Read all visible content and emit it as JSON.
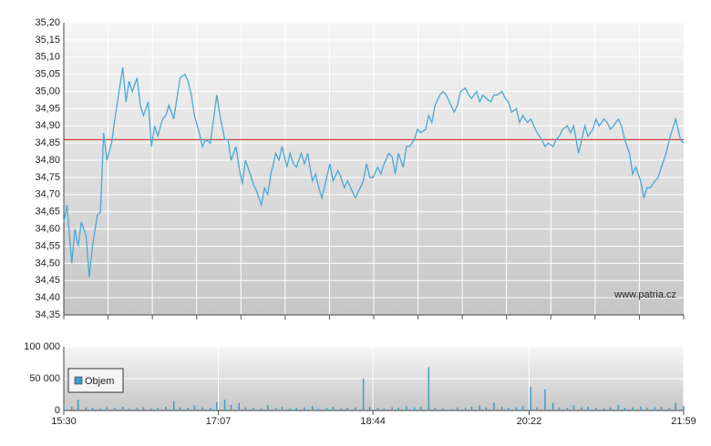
{
  "chart_data": [
    {
      "type": "line",
      "xlim": [
        "15:30",
        "21:59"
      ],
      "ylim": [
        34.35,
        35.2
      ],
      "yticks": [
        {
          "value": 34.35,
          "label": "34,35"
        },
        {
          "value": 34.4,
          "label": "34,40"
        },
        {
          "value": 34.45,
          "label": "34,45"
        },
        {
          "value": 34.5,
          "label": "34,50"
        },
        {
          "value": 34.55,
          "label": "34,55"
        },
        {
          "value": 34.6,
          "label": "34,60"
        },
        {
          "value": 34.65,
          "label": "34,65"
        },
        {
          "value": 34.7,
          "label": "34,70"
        },
        {
          "value": 34.75,
          "label": "34,75"
        },
        {
          "value": 34.8,
          "label": "34,80"
        },
        {
          "value": 34.85,
          "label": "34,85"
        },
        {
          "value": 34.9,
          "label": "34,90"
        },
        {
          "value": 34.95,
          "label": "34,95"
        },
        {
          "value": 35.0,
          "label": "35,00"
        },
        {
          "value": 35.05,
          "label": "35,05"
        },
        {
          "value": 35.1,
          "label": "35,10"
        },
        {
          "value": 35.15,
          "label": "35,15"
        },
        {
          "value": 35.2,
          "label": "35,20"
        }
      ],
      "grid": true,
      "reference_line": {
        "value": 34.86,
        "color": "#cc2222"
      },
      "annotation": "www.patria.cz",
      "x": [
        "15:30",
        "15:32",
        "15:35",
        "15:37",
        "15:39",
        "15:41",
        "15:44",
        "15:46",
        "15:48",
        "15:51",
        "15:53",
        "15:55",
        "15:57",
        "16:00",
        "16:02",
        "16:04",
        "16:07",
        "16:09",
        "16:11",
        "16:13",
        "16:16",
        "16:18",
        "16:20",
        "16:23",
        "16:25",
        "16:27",
        "16:29",
        "16:32",
        "16:34",
        "16:36",
        "16:39",
        "16:41",
        "16:43",
        "16:46",
        "16:48",
        "16:50",
        "16:52",
        "16:55",
        "16:57",
        "16:59",
        "17:02",
        "17:04",
        "17:06",
        "17:08",
        "17:11",
        "17:13",
        "17:15",
        "17:18",
        "17:20",
        "17:22",
        "17:24",
        "17:27",
        "17:29",
        "17:31",
        "17:34",
        "17:36",
        "17:38",
        "17:40",
        "17:43",
        "17:45",
        "17:47",
        "17:50",
        "17:52",
        "17:54",
        "17:56",
        "17:59",
        "18:01",
        "18:03",
        "18:06",
        "18:08",
        "18:10",
        "18:12",
        "18:15",
        "18:17",
        "18:19",
        "18:22",
        "18:24",
        "18:26",
        "18:28",
        "18:31",
        "18:33",
        "18:35",
        "18:38",
        "18:40",
        "18:42",
        "18:44",
        "18:47",
        "18:49",
        "18:51",
        "18:54",
        "18:56",
        "18:58",
        "19:00",
        "19:03",
        "19:05",
        "19:07",
        "19:10",
        "19:12",
        "19:14",
        "19:17",
        "19:19",
        "19:21",
        "19:23",
        "19:26",
        "19:28",
        "19:30",
        "19:33",
        "19:35",
        "19:37",
        "19:39",
        "19:42",
        "19:44",
        "19:46",
        "19:49",
        "19:51",
        "19:53",
        "19:55",
        "19:58",
        "20:00",
        "20:02",
        "20:05",
        "20:07",
        "20:09",
        "20:11",
        "20:14",
        "20:16",
        "20:18",
        "20:21",
        "20:23",
        "20:25",
        "20:27",
        "20:30",
        "20:32",
        "20:34",
        "20:37",
        "20:39",
        "20:41",
        "20:43",
        "20:46",
        "20:48",
        "20:50",
        "20:53",
        "20:55",
        "20:57",
        "20:59",
        "21:02",
        "21:04",
        "21:06",
        "21:09",
        "21:11",
        "21:13",
        "21:15",
        "21:18",
        "21:20",
        "21:22",
        "21:25",
        "21:27",
        "21:29",
        "21:32",
        "21:34",
        "21:36",
        "21:38",
        "21:41",
        "21:43",
        "21:45",
        "21:48",
        "21:50",
        "21:52",
        "21:54",
        "21:57",
        "21:59"
      ],
      "series": [
        {
          "color": "#4aa8d4",
          "values": [
            34.62,
            34.67,
            34.5,
            34.6,
            34.55,
            34.62,
            34.58,
            34.46,
            34.55,
            34.64,
            34.65,
            34.88,
            34.8,
            34.85,
            34.92,
            34.98,
            35.07,
            34.97,
            35.03,
            35.0,
            35.04,
            34.96,
            34.93,
            34.97,
            34.84,
            34.9,
            34.87,
            34.92,
            34.93,
            34.96,
            34.92,
            34.98,
            35.04,
            35.05,
            35.03,
            34.99,
            34.93,
            34.88,
            34.84,
            34.86,
            34.85,
            34.92,
            34.99,
            34.93,
            34.86,
            34.86,
            34.8,
            34.84,
            34.78,
            34.73,
            34.8,
            34.76,
            34.73,
            34.71,
            34.67,
            34.72,
            34.7,
            34.76,
            34.82,
            34.8,
            34.84,
            34.78,
            34.82,
            34.79,
            34.78,
            34.82,
            34.79,
            34.82,
            34.74,
            34.76,
            34.72,
            34.69,
            34.75,
            34.79,
            34.74,
            34.77,
            34.75,
            34.72,
            34.74,
            34.71,
            34.69,
            34.71,
            34.74,
            34.79,
            34.75,
            34.75,
            34.78,
            34.76,
            34.79,
            34.82,
            34.81,
            34.76,
            34.82,
            34.78,
            34.84,
            34.84,
            34.86,
            34.89,
            34.88,
            34.89,
            34.93,
            34.91,
            34.96,
            34.99,
            35.0,
            34.99,
            34.96,
            34.94,
            34.96,
            35.0,
            35.01,
            34.99,
            34.98,
            35.0,
            34.97,
            34.99,
            34.98,
            34.97,
            34.99,
            34.99,
            35.0,
            34.98,
            34.97,
            34.94,
            34.95,
            34.91,
            34.93,
            34.91,
            34.92,
            34.9,
            34.88,
            34.86,
            34.84,
            34.85,
            34.84,
            34.86,
            34.87,
            34.89,
            34.9,
            34.88,
            34.9,
            34.82,
            34.86,
            34.9,
            34.87,
            34.89,
            34.92,
            34.9,
            34.92,
            34.91,
            34.89,
            34.9,
            34.92,
            34.9,
            34.86,
            34.82,
            34.76,
            34.78,
            34.74,
            34.69,
            34.72,
            34.72,
            34.74,
            34.75,
            34.78,
            34.82,
            34.86,
            34.89,
            34.92,
            34.86,
            34.85
          ]
        }
      ]
    },
    {
      "type": "bar",
      "xlim": [
        "15:30",
        "21:59"
      ],
      "xticks": [
        "15:30",
        "17:07",
        "18:44",
        "20:22",
        "21:59"
      ],
      "ylim": [
        0,
        100000
      ],
      "yticks": [
        0,
        {
          "value": 50000,
          "label": "50 000"
        },
        {
          "value": 100000,
          "label": "100 000"
        }
      ],
      "grid": true,
      "legend": "upper left",
      "x": [
        "15:30",
        "15:35",
        "15:39",
        "15:44",
        "15:48",
        "15:53",
        "15:57",
        "16:02",
        "16:07",
        "16:11",
        "16:16",
        "16:20",
        "16:25",
        "16:29",
        "16:34",
        "16:39",
        "16:43",
        "16:48",
        "16:52",
        "16:57",
        "17:02",
        "17:06",
        "17:11",
        "17:15",
        "17:20",
        "17:24",
        "17:29",
        "17:34",
        "17:38",
        "17:43",
        "17:47",
        "17:52",
        "17:56",
        "18:01",
        "18:06",
        "18:10",
        "18:15",
        "18:19",
        "18:24",
        "18:28",
        "18:33",
        "18:38",
        "18:42",
        "18:47",
        "18:51",
        "18:56",
        "19:00",
        "19:05",
        "19:10",
        "19:14",
        "19:19",
        "19:23",
        "19:28",
        "19:33",
        "19:37",
        "19:42",
        "19:46",
        "19:51",
        "19:55",
        "20:00",
        "20:05",
        "20:09",
        "20:14",
        "20:18",
        "20:23",
        "20:27",
        "20:32",
        "20:37",
        "20:41",
        "20:46",
        "20:50",
        "20:55",
        "20:59",
        "21:04",
        "21:09",
        "21:13",
        "21:18",
        "21:22",
        "21:27",
        "21:32",
        "21:36",
        "21:41",
        "21:45",
        "21:50",
        "21:54",
        "21:59"
      ],
      "series": [
        {
          "name": "Objem",
          "color": "#3d9cc8",
          "values": [
            8000,
            6000,
            17000,
            5000,
            4000,
            3000,
            5000,
            4000,
            6000,
            3000,
            4000,
            5000,
            3000,
            4000,
            6000,
            15000,
            5000,
            4000,
            8000,
            5000,
            4000,
            13000,
            17000,
            9000,
            12000,
            5000,
            4000,
            3000,
            8000,
            4000,
            6000,
            3000,
            4000,
            5000,
            7000,
            3000,
            4000,
            6000,
            3000,
            4000,
            5000,
            50000,
            6000,
            4000,
            3000,
            5000,
            4000,
            7000,
            5000,
            6000,
            68000,
            4000,
            3000,
            2000,
            5000,
            4000,
            6000,
            8000,
            5000,
            12000,
            6000,
            4000,
            5000,
            7000,
            37000,
            5000,
            33000,
            12000,
            5000,
            4000,
            8000,
            5000,
            6000,
            4000,
            3000,
            5000,
            9000,
            4000,
            5000,
            6000,
            4000,
            5000,
            6000,
            4000,
            12000,
            7000
          ]
        }
      ]
    }
  ]
}
